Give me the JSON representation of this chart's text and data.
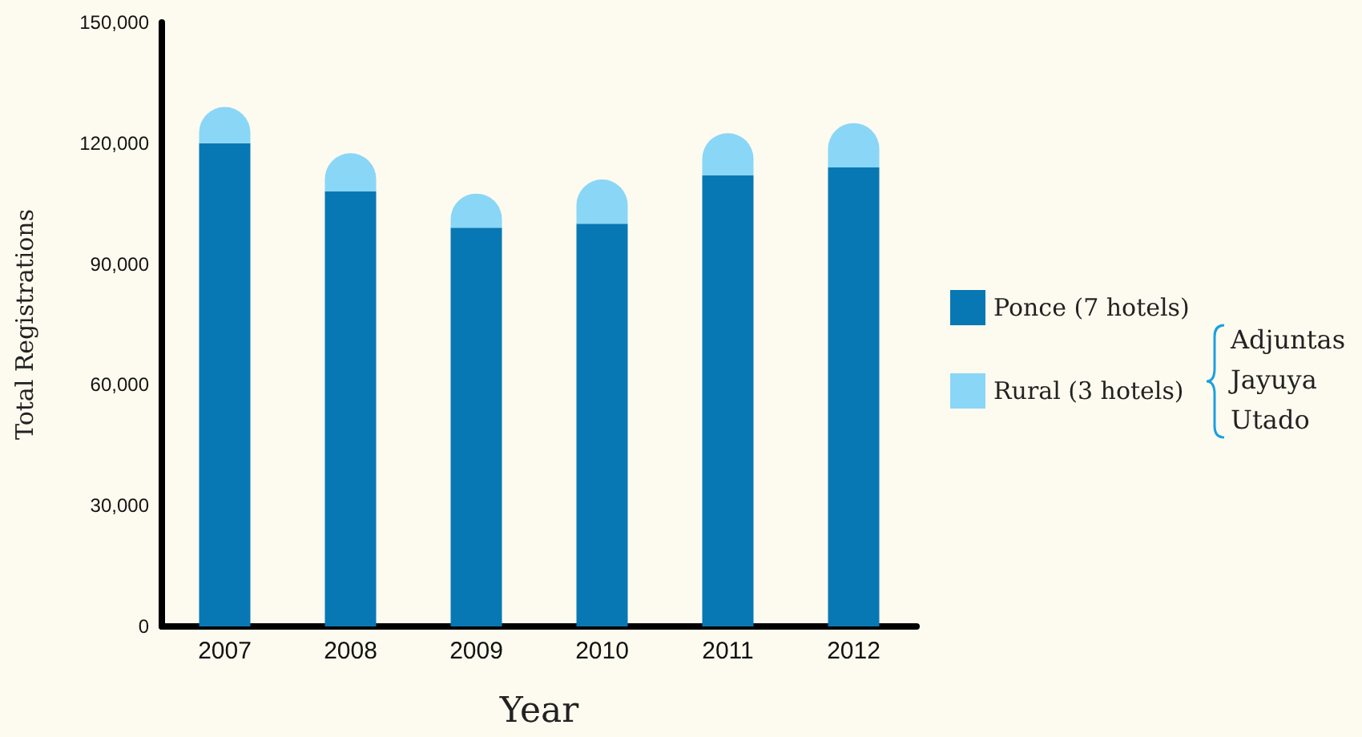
{
  "chart_data": {
    "type": "bar",
    "stacked": true,
    "categories": [
      "2007",
      "2008",
      "2009",
      "2010",
      "2011",
      "2012"
    ],
    "series": [
      {
        "name": "Ponce (7 hotels)",
        "color": "#0878b4",
        "values": [
          120000,
          108000,
          99000,
          100000,
          112000,
          114000
        ]
      },
      {
        "name": "Rural (3 hotels)",
        "color": "#8ad6f7",
        "values": [
          9000,
          9500,
          8500,
          11000,
          10500,
          11000
        ]
      }
    ],
    "xlabel": "Year",
    "ylabel": "Total Registrations",
    "ylim": [
      0,
      150000
    ],
    "yticks": [
      0,
      {
        "value": 30000,
        "label": "30,000"
      },
      {
        "value": 60000,
        "label": "60,000"
      },
      {
        "value": 90000,
        "label": "90,000"
      },
      {
        "value": 120000,
        "label": "120,000"
      },
      {
        "value": 150000,
        "label": "150,000"
      }
    ],
    "grid": false,
    "legend": "right",
    "annotations": [
      "Adjuntas",
      "Jayuya",
      "Utado"
    ]
  }
}
